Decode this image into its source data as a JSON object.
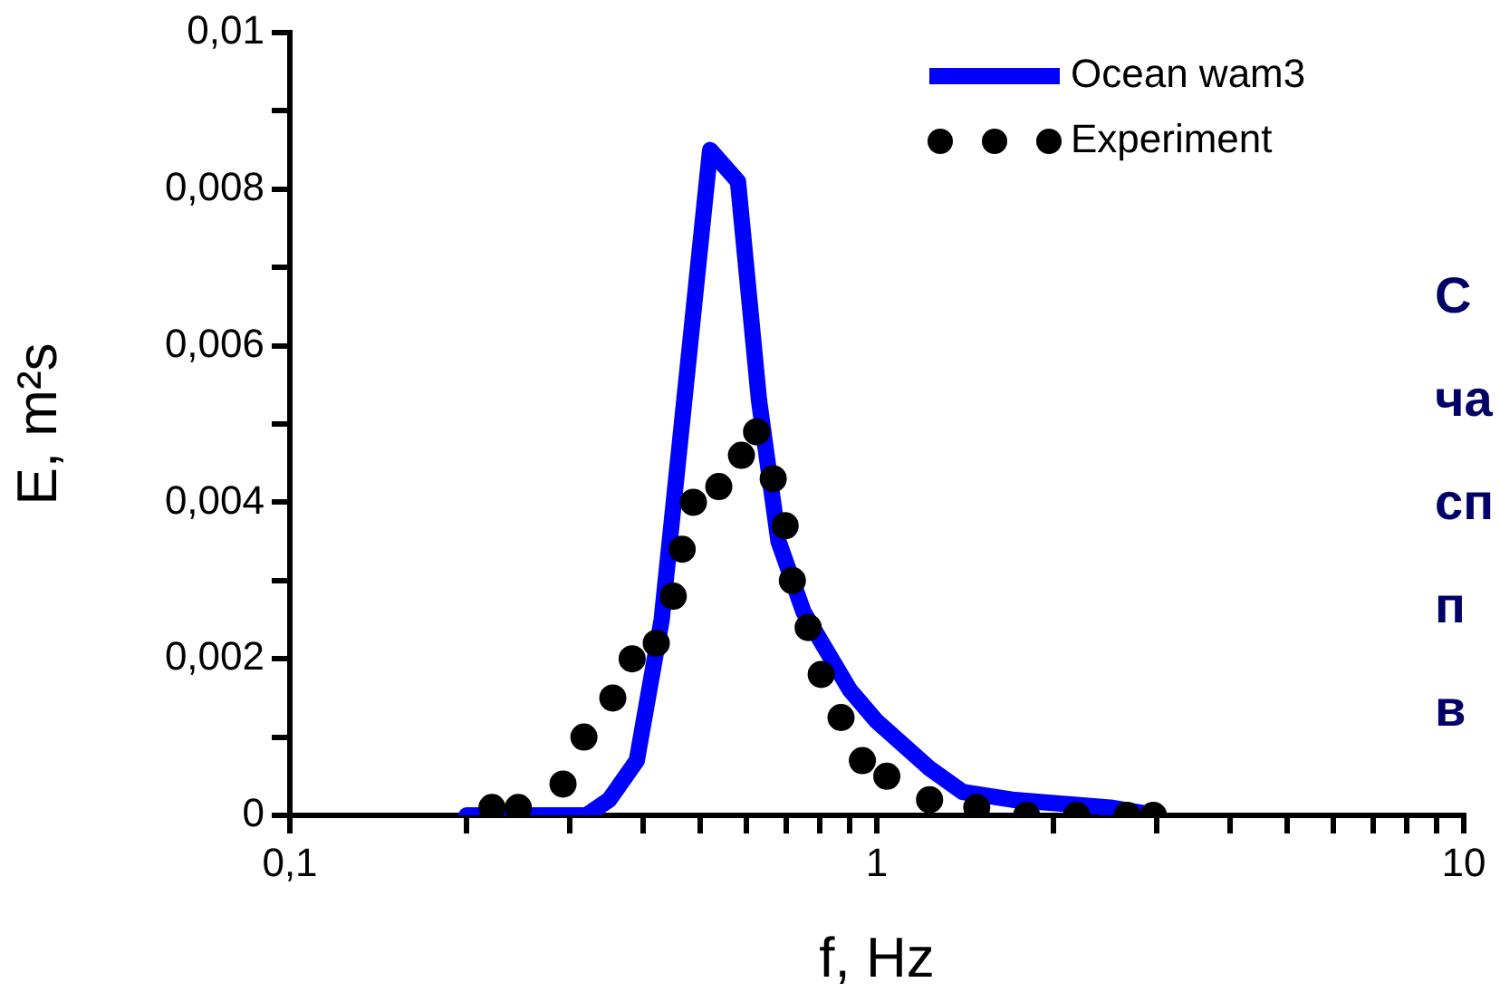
{
  "chart_data": {
    "type": "line",
    "xlabel": "f, Hz",
    "ylabel": "E, m²s",
    "log": "x",
    "grid": false,
    "legend": "top right",
    "xlim": [
      0.1,
      10
    ],
    "xticks": [
      {
        "value": 0.1,
        "label": "0,1"
      },
      {
        "value": 0.2,
        "label": null
      },
      {
        "value": 0.3,
        "label": null
      },
      {
        "value": 0.4,
        "label": null
      },
      {
        "value": 0.5,
        "label": null
      },
      {
        "value": 0.6,
        "label": null
      },
      {
        "value": 0.7,
        "label": null
      },
      {
        "value": 0.8,
        "label": null
      },
      {
        "value": 0.9,
        "label": null
      },
      1,
      {
        "value": 2,
        "label": null
      },
      {
        "value": 3,
        "label": null
      },
      {
        "value": 4,
        "label": null
      },
      {
        "value": 5,
        "label": null
      },
      {
        "value": 6,
        "label": null
      },
      {
        "value": 7,
        "label": null
      },
      {
        "value": 8,
        "label": null
      },
      {
        "value": 9,
        "label": null
      },
      10
    ],
    "ylim": [
      0,
      0.01
    ],
    "yticks": [
      0,
      {
        "value": 0.001,
        "label": null
      },
      {
        "value": 0.002,
        "label": "0,002"
      },
      {
        "value": 0.003,
        "label": null
      },
      {
        "value": 0.004,
        "label": "0,004"
      },
      {
        "value": 0.005,
        "label": null
      },
      {
        "value": 0.006,
        "label": "0,006"
      },
      {
        "value": 0.007,
        "label": null
      },
      {
        "value": 0.008,
        "label": "0,008"
      },
      {
        "value": 0.009,
        "label": null
      },
      {
        "value": 0.01,
        "label": "0,01"
      }
    ],
    "annotations": [
      "С",
      "ча",
      "сп",
      "п",
      "в"
    ],
    "series": [
      {
        "name": "Ocean wam3",
        "type": "line",
        "color": "#0000ff",
        "marker": "none",
        "line_style": "solid",
        "x": [
          0.2,
          0.32,
          0.35,
          0.39,
          0.43,
          0.52,
          0.58,
          0.63,
          0.68,
          0.75,
          0.9,
          1.0,
          1.23,
          1.4,
          1.7,
          2.5,
          3.0
        ],
        "values": [
          0,
          0,
          0.0002,
          0.0007,
          0.0025,
          0.0085,
          0.0081,
          0.0053,
          0.0035,
          0.0026,
          0.0016,
          0.0012,
          0.0006,
          0.0003,
          0.0002,
          0.0001,
          0
        ]
      },
      {
        "name": "Experiment",
        "type": "scatter",
        "color": "#000000",
        "marker": "circle",
        "x": [
          0.221,
          0.245,
          0.292,
          0.317,
          0.355,
          0.383,
          0.421,
          0.45,
          0.466,
          0.487,
          0.538,
          0.588,
          0.624,
          0.666,
          0.698,
          0.718,
          0.764,
          0.804,
          0.869,
          0.945,
          1.04,
          1.23,
          1.48,
          1.8,
          2.19,
          2.67,
          2.96
        ],
        "values": [
          0.0001,
          0.0001,
          0.0004,
          0.001,
          0.0015,
          0.002,
          0.0022,
          0.0028,
          0.0034,
          0.004,
          0.0042,
          0.0046,
          0.0049,
          0.0043,
          0.0037,
          0.003,
          0.0024,
          0.0018,
          0.00125,
          0.0007,
          0.0005,
          0.0002,
          0.0001,
          0,
          0,
          0,
          0
        ]
      }
    ]
  }
}
